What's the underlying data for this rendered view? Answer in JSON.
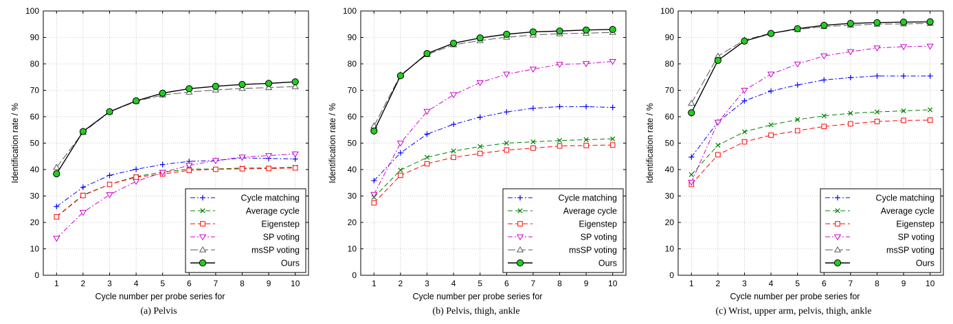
{
  "chart_data": [
    {
      "type": "line",
      "caption": "(a) Pelvis",
      "xlabel": "Cycle number per probe series for",
      "ylabel": "Identification rate / %",
      "x": [
        1,
        2,
        3,
        4,
        5,
        6,
        7,
        8,
        9,
        10
      ],
      "xlim": [
        0.5,
        10.5
      ],
      "ylim": [
        0,
        100
      ],
      "yticks": [
        0,
        10,
        20,
        30,
        40,
        50,
        60,
        70,
        80,
        90,
        100
      ],
      "grid": true,
      "legend_position": "bottom-right",
      "series": [
        {
          "name": "Cycle matching",
          "color": "#0000ff",
          "marker": "plus",
          "dash": "dashdot",
          "values": [
            26,
            33.3,
            37.8,
            40.1,
            41.9,
            43.1,
            43.4,
            44.4,
            44.2,
            44.0
          ]
        },
        {
          "name": "Average cycle",
          "color": "#008000",
          "marker": "x",
          "dash": "dash",
          "values": [
            22.2,
            30.4,
            34.4,
            37.4,
            39.0,
            40.2,
            40.2,
            40.6,
            40.6,
            40.9
          ]
        },
        {
          "name": "Eigenstep",
          "color": "#ff0000",
          "marker": "square",
          "dash": "dash",
          "values": [
            22.1,
            30.2,
            34.4,
            37.1,
            38.3,
            39.7,
            40.1,
            40.3,
            40.4,
            40.6
          ]
        },
        {
          "name": "SP voting",
          "color": "#cc00cc",
          "marker": "triangle-down",
          "dash": "dashdot",
          "values": [
            14,
            23.8,
            30.5,
            35.5,
            38.9,
            41.6,
            43.4,
            44.7,
            45.3,
            45.9
          ]
        },
        {
          "name": "msSP voting",
          "color": "#555555",
          "marker": "triangle-up",
          "dash": "longdash",
          "values": [
            40.8,
            54.1,
            61.8,
            65.8,
            68.2,
            69.3,
            70.1,
            70.7,
            71.0,
            71.4
          ]
        },
        {
          "name": "Ours",
          "color": "#000000",
          "marker": "circle",
          "dash": "solid",
          "values": [
            38.4,
            54.4,
            61.9,
            66.0,
            68.9,
            70.6,
            71.5,
            72.2,
            72.6,
            73.2
          ]
        }
      ]
    },
    {
      "type": "line",
      "caption": "(b) Pelvis, thigh, ankle",
      "xlabel": "Cycle number per probe series for",
      "ylabel": "Identification rate / %",
      "x": [
        1,
        2,
        3,
        4,
        5,
        6,
        7,
        8,
        9,
        10
      ],
      "xlim": [
        0.5,
        10.5
      ],
      "ylim": [
        0,
        100
      ],
      "yticks": [
        0,
        10,
        20,
        30,
        40,
        50,
        60,
        70,
        80,
        90,
        100
      ],
      "grid": true,
      "legend_position": "bottom-right",
      "series": [
        {
          "name": "Cycle matching",
          "color": "#0000ff",
          "marker": "plus",
          "dash": "dashdot",
          "values": [
            35.8,
            46.3,
            53.4,
            57.1,
            59.8,
            61.8,
            63.2,
            63.8,
            63.8,
            63.5
          ]
        },
        {
          "name": "Average cycle",
          "color": "#008000",
          "marker": "x",
          "dash": "dash",
          "values": [
            29.5,
            39.8,
            44.6,
            47.0,
            48.7,
            50.0,
            50.5,
            51.0,
            51.3,
            51.6
          ]
        },
        {
          "name": "Eigenstep",
          "color": "#ff0000",
          "marker": "square",
          "dash": "dash",
          "values": [
            27.4,
            37.8,
            42.2,
            44.6,
            46.1,
            47.4,
            48.1,
            48.9,
            49.1,
            49.3
          ]
        },
        {
          "name": "SP voting",
          "color": "#cc00cc",
          "marker": "triangle-down",
          "dash": "dashdot",
          "values": [
            30.6,
            50.0,
            62.0,
            68.3,
            72.9,
            76.1,
            78.0,
            79.8,
            80.1,
            80.9
          ]
        },
        {
          "name": "msSP voting",
          "color": "#555555",
          "marker": "triangle-up",
          "dash": "longdash",
          "values": [
            56.5,
            75.8,
            83.5,
            87.2,
            88.8,
            90.1,
            90.9,
            91.4,
            91.6,
            91.9
          ]
        },
        {
          "name": "Ours",
          "color": "#000000",
          "marker": "circle",
          "dash": "solid",
          "values": [
            54.6,
            75.5,
            83.9,
            87.8,
            89.8,
            91.2,
            92.1,
            92.4,
            92.8,
            93.0
          ]
        }
      ]
    },
    {
      "type": "line",
      "caption": "(c) Wrist, upper arm, pelvis, thigh, ankle",
      "xlabel": "Cycle number per probe series for",
      "ylabel": "Identification rate / %",
      "x": [
        1,
        2,
        3,
        4,
        5,
        6,
        7,
        8,
        9,
        10
      ],
      "xlim": [
        0.5,
        10.5
      ],
      "ylim": [
        0,
        100
      ],
      "yticks": [
        0,
        10,
        20,
        30,
        40,
        50,
        60,
        70,
        80,
        90,
        100
      ],
      "grid": true,
      "legend_position": "bottom-right",
      "series": [
        {
          "name": "Cycle matching",
          "color": "#0000ff",
          "marker": "plus",
          "dash": "dashdot",
          "values": [
            44.7,
            58.0,
            66.0,
            69.7,
            72.0,
            73.9,
            74.8,
            75.4,
            75.4,
            75.4
          ]
        },
        {
          "name": "Average cycle",
          "color": "#008000",
          "marker": "x",
          "dash": "dash",
          "values": [
            38.1,
            49.2,
            54.3,
            56.9,
            58.9,
            60.3,
            61.3,
            61.8,
            62.2,
            62.6
          ]
        },
        {
          "name": "Eigenstep",
          "color": "#ff0000",
          "marker": "square",
          "dash": "dash",
          "values": [
            34.4,
            45.6,
            50.5,
            53.0,
            54.7,
            56.3,
            57.3,
            58.2,
            58.6,
            58.7
          ]
        },
        {
          "name": "SP voting",
          "color": "#cc00cc",
          "marker": "triangle-down",
          "dash": "dashdot",
          "values": [
            35.2,
            57.9,
            70.0,
            76.1,
            79.9,
            83.0,
            84.6,
            86.0,
            86.5,
            86.7
          ]
        },
        {
          "name": "msSP voting",
          "color": "#555555",
          "marker": "triangle-up",
          "dash": "longdash",
          "values": [
            65.1,
            82.9,
            89.0,
            91.6,
            93.0,
            94.1,
            94.6,
            95.0,
            95.1,
            95.3
          ]
        },
        {
          "name": "Ours",
          "color": "#000000",
          "marker": "circle",
          "dash": "solid",
          "values": [
            61.5,
            81.3,
            88.6,
            91.5,
            93.3,
            94.6,
            95.3,
            95.6,
            95.8,
            95.9
          ]
        }
      ]
    }
  ]
}
